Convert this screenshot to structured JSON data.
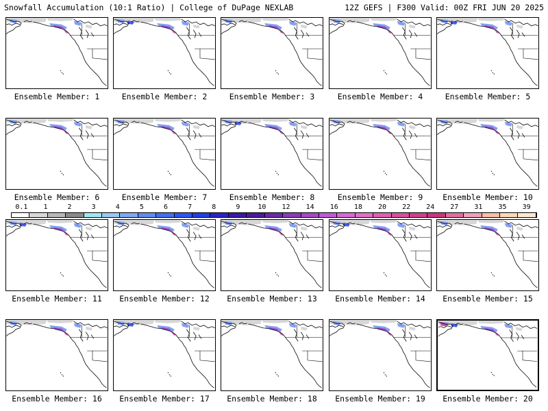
{
  "header": {
    "title_left": "Snowfall Accumulation (10:1 Ratio) | College of DuPage NEXLAB",
    "title_right": "12Z GEFS | F300 Valid: 00Z FRI JUN 20 2025"
  },
  "panels": [
    {
      "label": "Ensemble Member: 1"
    },
    {
      "label": "Ensemble Member: 2"
    },
    {
      "label": "Ensemble Member: 3"
    },
    {
      "label": "Ensemble Member: 4"
    },
    {
      "label": "Ensemble Member: 5"
    },
    {
      "label": "Ensemble Member: 6"
    },
    {
      "label": "Ensemble Member: 7"
    },
    {
      "label": "Ensemble Member: 8"
    },
    {
      "label": "Ensemble Member: 9"
    },
    {
      "label": "Ensemble Member: 10"
    },
    {
      "label": "Ensemble Member: 11"
    },
    {
      "label": "Ensemble Member: 12"
    },
    {
      "label": "Ensemble Member: 13"
    },
    {
      "label": "Ensemble Member: 14"
    },
    {
      "label": "Ensemble Member: 15"
    },
    {
      "label": "Ensemble Member: 16"
    },
    {
      "label": "Ensemble Member: 17"
    },
    {
      "label": "Ensemble Member: 18"
    },
    {
      "label": "Ensemble Member: 19"
    },
    {
      "label": "Ensemble Member: 20",
      "highlighted": true
    }
  ],
  "colorbar": {
    "labels": [
      "0.1",
      "1",
      "2",
      "3",
      "4",
      "5",
      "6",
      "7",
      "8",
      "9",
      "10",
      "12",
      "14",
      "16",
      "18",
      "20",
      "22",
      "24",
      "27",
      "31",
      "35",
      "39"
    ],
    "colors": [
      "#ffffff",
      "#d9d9d9",
      "#b8b8b8",
      "#8a8a8a",
      "#9fe8f2",
      "#9cc8f5",
      "#7eaaf2",
      "#5f8cf0",
      "#456ff0",
      "#2f55f0",
      "#1f3fe8",
      "#2a22c8",
      "#3a1aa8",
      "#4d1a9c",
      "#6a2aaa",
      "#8a3aba",
      "#a64ac8",
      "#c05ad8",
      "#d868d8",
      "#e070c8",
      "#e060b0",
      "#d8509a",
      "#d04088",
      "#c83878",
      "#e070a0",
      "#f0a0b8",
      "#f8c0a8",
      "#fcd8b8",
      "#fee8d0"
    ]
  },
  "colors": {
    "snow_light": "#d0d0d0",
    "snow_blue": "#6f8ff0",
    "snow_dark_blue": "#2a3fe0",
    "snow_purple": "#9a3ac0",
    "snow_magenta": "#d040a8"
  }
}
